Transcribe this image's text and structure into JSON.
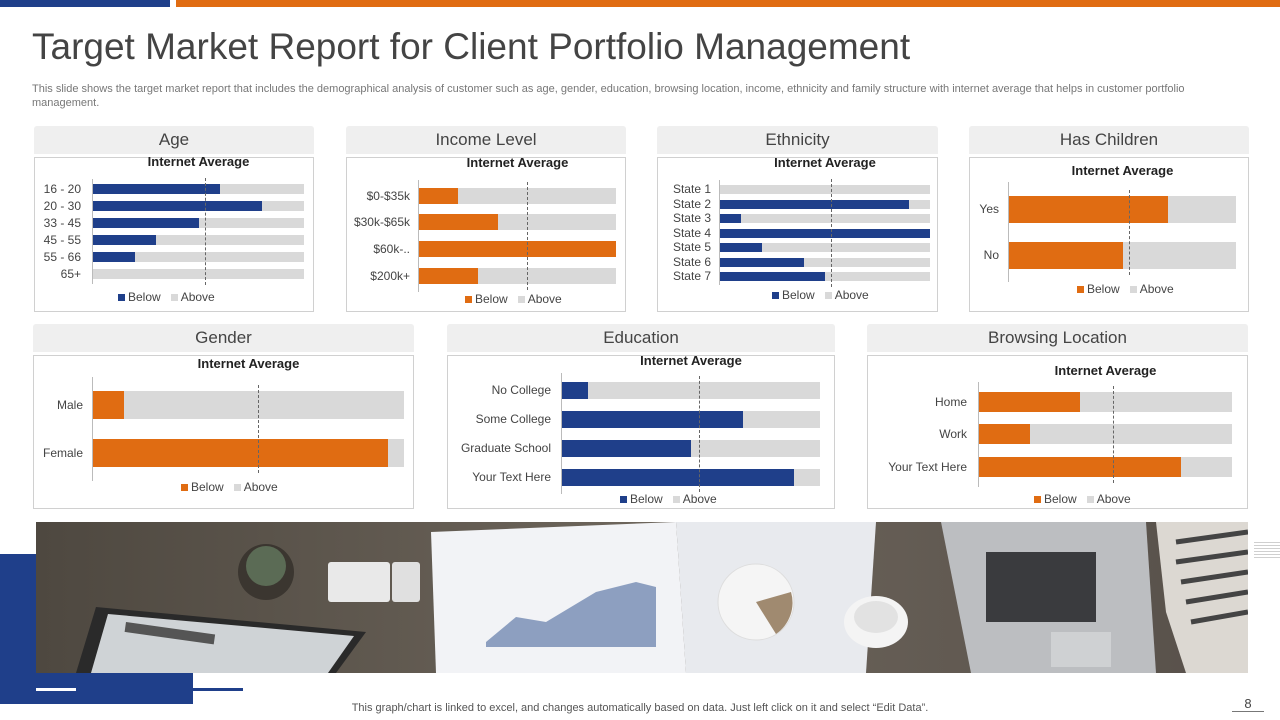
{
  "title": "Target Market Report for Client Portfolio Management",
  "subtitle": "This slide shows the target market report that includes the demographical analysis of customer such as age, gender, education, browsing location, income, ethnicity and family structure with internet average that helps in customer portfolio management.",
  "footer_note": "This graph/chart is linked to excel,  and changes automatically based on data. Just left click on it and select “Edit Data”.",
  "page_number": "8",
  "colors": {
    "blue": "#1f3f8a",
    "orange": "#e06c12",
    "grey": "#d9d9d9"
  },
  "chart_data": [
    {
      "id": "age",
      "panel_title": "Age",
      "type": "bar",
      "orientation": "horizontal",
      "stacked": true,
      "title": "Internet Average",
      "color": "blue",
      "categories": [
        "16 - 20",
        "20 - 30",
        "33 - 45",
        "45 - 55",
        "55 - 66",
        "65+"
      ],
      "series": [
        {
          "name": "Below",
          "values": [
            60,
            80,
            50,
            30,
            20,
            0
          ]
        },
        {
          "name": "Above",
          "values": [
            40,
            20,
            50,
            70,
            80,
            100
          ]
        }
      ],
      "average": 53,
      "xlim": [
        0,
        100
      ],
      "legend": "bottom"
    },
    {
      "id": "income",
      "panel_title": "Income Level",
      "type": "bar",
      "orientation": "horizontal",
      "stacked": true,
      "title": "Internet Average",
      "color": "orange",
      "categories": [
        "$0-$35k",
        "$30k-$65k",
        "$60k-..",
        "$200k+"
      ],
      "series": [
        {
          "name": "Below",
          "values": [
            20,
            40,
            100,
            30
          ]
        },
        {
          "name": "Above",
          "values": [
            80,
            60,
            0,
            70
          ]
        }
      ],
      "average": 55,
      "xlim": [
        0,
        100
      ],
      "legend": "bottom"
    },
    {
      "id": "ethnicity",
      "panel_title": "Ethnicity",
      "type": "bar",
      "orientation": "horizontal",
      "stacked": true,
      "title": "Internet Average",
      "color": "blue",
      "categories": [
        "State 1",
        "State 2",
        "State 3",
        "State 4",
        "State 5",
        "State 6",
        "State 7"
      ],
      "series": [
        {
          "name": "Below",
          "values": [
            0,
            90,
            10,
            100,
            20,
            40,
            50
          ]
        },
        {
          "name": "Above",
          "values": [
            100,
            10,
            90,
            0,
            80,
            60,
            50
          ]
        }
      ],
      "average": 53,
      "xlim": [
        0,
        100
      ],
      "legend": "bottom"
    },
    {
      "id": "children",
      "panel_title": "Has Children",
      "type": "bar",
      "orientation": "horizontal",
      "stacked": true,
      "title": "Internet Average",
      "color": "orange",
      "categories": [
        "Yes",
        "No"
      ],
      "series": [
        {
          "name": "Below",
          "values": [
            70,
            50
          ]
        },
        {
          "name": "Above",
          "values": [
            30,
            50
          ]
        }
      ],
      "average": 53,
      "xlim": [
        0,
        100
      ],
      "legend": "bottom"
    },
    {
      "id": "gender",
      "panel_title": "Gender",
      "type": "bar",
      "orientation": "horizontal",
      "stacked": true,
      "title": "Internet Average",
      "color": "orange",
      "categories": [
        "Male",
        "Female"
      ],
      "series": [
        {
          "name": "Below",
          "values": [
            10,
            95
          ]
        },
        {
          "name": "Above",
          "values": [
            90,
            5
          ]
        }
      ],
      "average": 53,
      "xlim": [
        0,
        100
      ],
      "legend": "bottom"
    },
    {
      "id": "education",
      "panel_title": "Education",
      "type": "bar",
      "orientation": "horizontal",
      "stacked": true,
      "title": "Internet Average",
      "color": "blue",
      "categories": [
        "No College",
        "Some College",
        "Graduate School",
        "Your Text Here"
      ],
      "series": [
        {
          "name": "Below",
          "values": [
            10,
            70,
            50,
            90
          ]
        },
        {
          "name": "Above",
          "values": [
            90,
            30,
            50,
            10
          ]
        }
      ],
      "average": 53,
      "xlim": [
        0,
        100
      ],
      "legend": "bottom"
    },
    {
      "id": "browsing",
      "panel_title": "Browsing Location",
      "type": "bar",
      "orientation": "horizontal",
      "stacked": true,
      "title": "Internet Average",
      "color": "orange",
      "categories": [
        "Home",
        "Work",
        "Your Text Here"
      ],
      "series": [
        {
          "name": "Below",
          "values": [
            40,
            20,
            80
          ]
        },
        {
          "name": "Above",
          "values": [
            60,
            80,
            20
          ]
        }
      ],
      "average": 53,
      "xlim": [
        0,
        100
      ],
      "legend": "bottom"
    }
  ]
}
